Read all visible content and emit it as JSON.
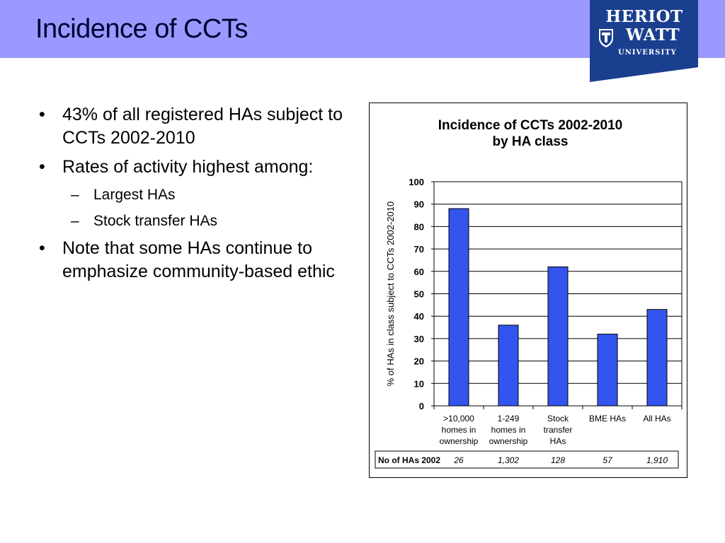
{
  "slide": {
    "title": "Incidence of CCTs",
    "bullets": [
      "43% of all registered HAs subject to CCTs 2002-2010",
      "Rates of activity highest among:",
      "Note that some HAs continue to emphasize community-based ethic"
    ],
    "sub_bullets": [
      "Largest HAs",
      "Stock transfer HAs"
    ],
    "bullet_glyph": "•",
    "sub_glyph": "–"
  },
  "logo": {
    "line1": "HERIOT",
    "line2": "WATT",
    "line3": "UNIVERSITY",
    "color": "#1a3f8f"
  },
  "colors": {
    "title_bar": "#9999ff",
    "bar_fill": "#3355ee",
    "bar_stroke": "#000000"
  },
  "chart_data": {
    "type": "bar",
    "title_lines": [
      "Incidence of CCTs 2002-2010",
      "by HA class"
    ],
    "ylabel": "% of HAs in class subject to CCTs 2002-2010",
    "xlabel": "",
    "categories": [
      [
        ">10,000",
        "homes in",
        "ownership"
      ],
      [
        "1-249",
        "homes in",
        "ownership"
      ],
      [
        "Stock",
        "transfer",
        "HAs"
      ],
      [
        "BME HAs"
      ],
      [
        "All HAs"
      ]
    ],
    "values": [
      88,
      36,
      62,
      32,
      43
    ],
    "ylim": [
      0,
      100
    ],
    "yticks": [
      0,
      10,
      20,
      30,
      40,
      50,
      60,
      70,
      80,
      90,
      100
    ],
    "grid": true,
    "legend": "none",
    "table": {
      "row_label": "No of HAs 2002",
      "values": [
        "26",
        "1,302",
        "128",
        "57",
        "1,910"
      ]
    }
  }
}
